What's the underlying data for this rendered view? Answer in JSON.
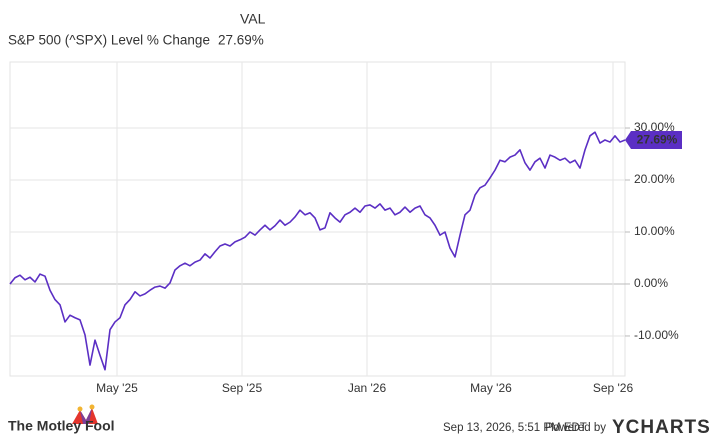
{
  "chart_data": {
    "type": "line",
    "legend_header": "VAL",
    "series": [
      {
        "name": "S&P 500 (^SPX) Level % Change",
        "color": "#5b2fc4",
        "current_value_label": "27.69%",
        "values": [
          0,
          1.2,
          1.7,
          0.8,
          1.3,
          0.4,
          1.9,
          1.5,
          -1.2,
          -3,
          -4,
          -7.3,
          -6,
          -6.5,
          -6.9,
          -9.8,
          -15.6,
          -10.8,
          -13.7,
          -16.5,
          -8.8,
          -7.3,
          -6.5,
          -4,
          -3,
          -1.5,
          -2.3,
          -1.9,
          -1.2,
          -0.6,
          -0.4,
          -0.8,
          0.2,
          2.7,
          3.5,
          4,
          3.5,
          4.2,
          4.6,
          5.8,
          5,
          6.2,
          7.3,
          7.7,
          7.3,
          8.1,
          8.5,
          9,
          10,
          9.4,
          10.4,
          11.3,
          10.4,
          11.2,
          12.3,
          11.3,
          11.9,
          12.9,
          14.2,
          13.3,
          13.7,
          12.7,
          10.4,
          10.8,
          13.7,
          12.7,
          11.9,
          13.3,
          13.8,
          14.6,
          13.8,
          15,
          15.2,
          14.6,
          15.4,
          14.2,
          14.6,
          13.3,
          13.8,
          14.8,
          13.8,
          14.6,
          15,
          13.3,
          12.7,
          11.3,
          9.4,
          10,
          6.9,
          5.2,
          9.4,
          13.3,
          14.2,
          17.1,
          18.5,
          19,
          20.4,
          21.9,
          23.8,
          23.5,
          24.4,
          24.8,
          25.8,
          23.3,
          21.9,
          23.5,
          24.2,
          22.3,
          24.8,
          24.4,
          23.8,
          24.2,
          23.3,
          23.8,
          22.3,
          25.8,
          28.5,
          29.2,
          27.1,
          27.7,
          27.3,
          28.5,
          27.3,
          27.69
        ]
      }
    ],
    "xlim": [
      0,
      123
    ],
    "xticks": [
      {
        "value": 21.4,
        "label": "May '25"
      },
      {
        "value": 46.4,
        "label": "Sep '25"
      },
      {
        "value": 71.4,
        "label": "Jan '26"
      },
      {
        "value": 96.2,
        "label": "May '26"
      },
      {
        "value": 120.6,
        "label": "Sep '26"
      }
    ],
    "ylim": [
      -17.7,
      42.7
    ],
    "yticks": [
      {
        "value": -10,
        "label": "-10.00%"
      },
      {
        "value": 0,
        "label": "0.00%"
      },
      {
        "value": 10,
        "label": "10.00%"
      },
      {
        "value": 20,
        "label": "20.00%"
      },
      {
        "value": 30,
        "label": "30.00%"
      }
    ],
    "grid": true
  },
  "footer": {
    "logo_text": "The Motley Fool",
    "timestamp": "Sep 13, 2026, 5:51 PM EDT",
    "powered_by": "Powered by",
    "brand": "YCHARTS"
  }
}
